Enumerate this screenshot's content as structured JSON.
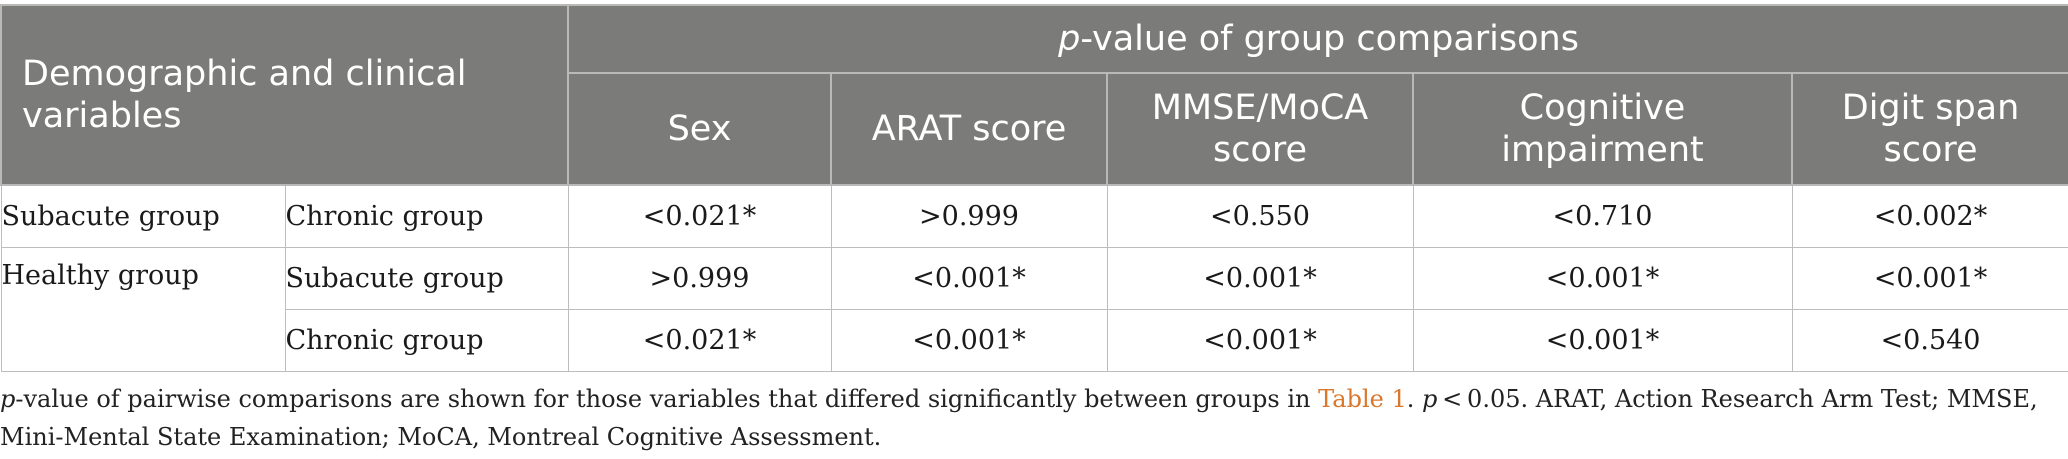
{
  "table": {
    "row_header": "Demographic and clinical variables",
    "group_header_italic": "p",
    "group_header_rest": "-value of group comparisons",
    "columns": [
      "Sex",
      "ARAT score",
      "MMSE/MoCA score",
      "Cognitive impairment",
      "Digit span score"
    ],
    "rows": [
      {
        "group_a": "Subacute group",
        "group_b": "Chronic group",
        "values": [
          "<0.021*",
          ">0.999",
          "<0.550",
          "<0.710",
          "<0.002*"
        ]
      },
      {
        "group_a": "Healthy group",
        "group_b": "Subacute group",
        "values": [
          ">0.999",
          "<0.001*",
          "<0.001*",
          "<0.001*",
          "<0.001*"
        ]
      },
      {
        "group_a": "",
        "group_b": "Chronic group",
        "values": [
          "<0.021*",
          "<0.001*",
          "<0.001*",
          "<0.001*",
          "<0.540"
        ]
      }
    ]
  },
  "footnote": {
    "p1": "p",
    "text1": "-value of pairwise comparisons are shown for those variables that differed significantly between groups in ",
    "link": "Table 1",
    "text2": ". ",
    "p2": "p",
    "text3": " < 0.05. ARAT, Action Research Arm Test; MMSE, Mini-Mental State Examination; MoCA, Montreal Cognitive Assessment."
  }
}
